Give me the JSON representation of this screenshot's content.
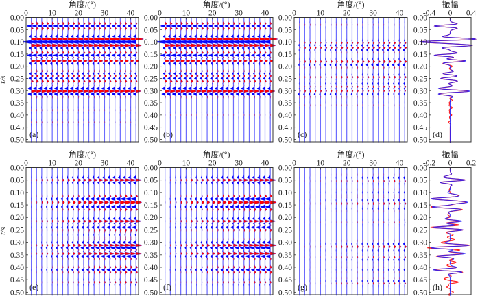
{
  "chart_data": [
    {
      "id": "a",
      "type": "seismic-gather",
      "panel_label": "(a)",
      "xlabel": "角度/(°)",
      "ylabel": "t/s",
      "xlim": [
        0,
        43
      ],
      "ylim": [
        0,
        0.51
      ],
      "xticks": [
        0,
        10,
        20,
        30,
        40
      ],
      "yticks": [
        "0.00",
        "0.05",
        "0.10",
        "0.15",
        "0.20",
        "0.25",
        "0.30",
        "0.35",
        "0.40",
        "0.45",
        "0.50"
      ],
      "angles": [
        2,
        4,
        6,
        8,
        10,
        12,
        14,
        16,
        18,
        20,
        22,
        24,
        26,
        28,
        30,
        32,
        34,
        36,
        38,
        40,
        42
      ],
      "events": [
        [
          0.035,
          -0.3,
          -0.18
        ],
        [
          0.088,
          0.3,
          0.38
        ],
        [
          0.1,
          -0.4,
          -0.34
        ],
        [
          0.115,
          0.34,
          0.3
        ],
        [
          0.155,
          -0.3,
          -0.2
        ],
        [
          0.178,
          0.3,
          0.2
        ],
        [
          0.23,
          -0.14,
          -0.08
        ],
        [
          0.25,
          -0.15,
          -0.1
        ],
        [
          0.262,
          0.08,
          0.05
        ],
        [
          0.29,
          -0.1,
          -0.06
        ],
        [
          0.302,
          0.3,
          0.28
        ],
        [
          0.315,
          -0.12,
          -0.08
        ],
        [
          0.38,
          0.03,
          0.02
        ],
        [
          0.43,
          0.03,
          0.02
        ]
      ]
    },
    {
      "id": "b",
      "type": "seismic-gather",
      "panel_label": "(b)",
      "xlabel": "角度/(°)",
      "xlim": [
        0,
        43
      ],
      "ylim": [
        0,
        0.51
      ],
      "xticks": [
        0,
        10,
        20,
        30,
        40
      ],
      "yticks": [
        "0.00",
        "0.05",
        "0.10",
        "0.15",
        "0.20",
        "0.25",
        "0.30",
        "0.35",
        "0.40",
        "0.45",
        "0.50"
      ],
      "angles": [
        2,
        4,
        6,
        8,
        10,
        12,
        14,
        16,
        18,
        20,
        22,
        24,
        26,
        28,
        30,
        32,
        34,
        36,
        38,
        40,
        42
      ],
      "events": [
        [
          0.035,
          -0.3,
          -0.18
        ],
        [
          0.088,
          0.3,
          0.36
        ],
        [
          0.1,
          -0.4,
          -0.34
        ],
        [
          0.115,
          0.34,
          0.28
        ],
        [
          0.155,
          -0.3,
          -0.2
        ],
        [
          0.178,
          0.3,
          0.18
        ],
        [
          0.23,
          -0.14,
          -0.08
        ],
        [
          0.25,
          -0.15,
          -0.1
        ],
        [
          0.262,
          0.08,
          0.05
        ],
        [
          0.29,
          -0.1,
          -0.06
        ],
        [
          0.302,
          0.3,
          0.26
        ],
        [
          0.315,
          -0.12,
          -0.08
        ],
        [
          0.4,
          0.02,
          0.02
        ]
      ]
    },
    {
      "id": "c",
      "type": "seismic-gather",
      "panel_label": "(c)",
      "xlabel": "角度/(°)",
      "xlim": [
        0,
        43
      ],
      "ylim": [
        0,
        0.51
      ],
      "xticks": [
        0,
        10,
        20,
        30,
        40
      ],
      "yticks": [
        "0.00",
        "0.05",
        "0.10",
        "0.15",
        "0.20",
        "0.25",
        "0.30",
        "0.35",
        "0.40",
        "0.45",
        "0.50"
      ],
      "angles": [
        2,
        4,
        6,
        8,
        10,
        12,
        14,
        16,
        18,
        20,
        22,
        24,
        26,
        28,
        30,
        32,
        34,
        36,
        38,
        40,
        42
      ],
      "events": [
        [
          0.03,
          0.03,
          0.02
        ],
        [
          0.105,
          0.02,
          0.1
        ],
        [
          0.112,
          -0.05,
          -0.02
        ],
        [
          0.125,
          0.04,
          0.1
        ],
        [
          0.132,
          -0.02,
          -0.1
        ],
        [
          0.18,
          0.05,
          0.12
        ],
        [
          0.195,
          -0.05,
          -0.12
        ],
        [
          0.245,
          0.03,
          0.12
        ],
        [
          0.27,
          -0.02,
          -0.06
        ],
        [
          0.285,
          0.02,
          0.08
        ],
        [
          0.3,
          0.06,
          0.08
        ],
        [
          0.315,
          -0.08,
          -0.03
        ],
        [
          0.36,
          0.02,
          0.02
        ]
      ]
    },
    {
      "id": "d",
      "type": "line",
      "panel_label": "(d)",
      "xlabel": "振幅",
      "xlim": [
        -0.4,
        0.4
      ],
      "ylim": [
        0,
        0.51
      ],
      "xticks": [
        "-0.4",
        "0",
        "0.4"
      ],
      "yticks": [
        "0.00",
        "0.05",
        "0.10",
        "0.15",
        "0.20",
        "0.25",
        "0.30",
        "0.35",
        "0.40",
        "0.45",
        "0.50"
      ],
      "series": [
        {
          "color": "#ff2020",
          "events": [
            [
              0.035,
              -0.3
            ],
            [
              0.088,
              0.33
            ],
            [
              0.1,
              -0.4
            ],
            [
              0.115,
              0.34
            ],
            [
              0.155,
              -0.3
            ],
            [
              0.178,
              0.28
            ],
            [
              0.2,
              0.04
            ],
            [
              0.23,
              -0.14
            ],
            [
              0.25,
              -0.15
            ],
            [
              0.262,
              0.08
            ],
            [
              0.29,
              -0.1
            ],
            [
              0.302,
              0.28
            ],
            [
              0.315,
              -0.12
            ],
            [
              0.34,
              0.04
            ],
            [
              0.37,
              0.04
            ],
            [
              0.4,
              0.03
            ],
            [
              0.43,
              -0.03
            ]
          ]
        },
        {
          "color": "#2020ff",
          "events": [
            [
              0.035,
              -0.3
            ],
            [
              0.088,
              0.33
            ],
            [
              0.1,
              -0.4
            ],
            [
              0.115,
              0.34
            ],
            [
              0.155,
              -0.3
            ],
            [
              0.178,
              0.3
            ],
            [
              0.23,
              -0.14
            ],
            [
              0.25,
              -0.15
            ],
            [
              0.262,
              0.08
            ],
            [
              0.29,
              -0.1
            ],
            [
              0.302,
              0.3
            ],
            [
              0.315,
              -0.12
            ]
          ]
        }
      ]
    },
    {
      "id": "e",
      "type": "seismic-gather",
      "panel_label": "(e)",
      "xlabel": "角度/(°)",
      "ylabel": "t/s",
      "xlim": [
        0,
        43
      ],
      "ylim": [
        0,
        0.51
      ],
      "xticks": [
        0,
        10,
        20,
        30,
        40
      ],
      "yticks": [
        "0.00",
        "0.05",
        "0.10",
        "0.15",
        "0.20",
        "0.25",
        "0.30",
        "0.35",
        "0.40",
        "0.45",
        "0.50"
      ],
      "angles": [
        2,
        4,
        6,
        8,
        10,
        12,
        14,
        16,
        18,
        20,
        22,
        24,
        26,
        28,
        30,
        32,
        34,
        36,
        38,
        40,
        42
      ],
      "events": [
        [
          0.05,
          0.0,
          0.38
        ],
        [
          0.125,
          0.0,
          -0.28
        ],
        [
          0.14,
          0.0,
          0.32
        ],
        [
          0.158,
          0.0,
          -0.28
        ],
        [
          0.215,
          0.0,
          0.34
        ],
        [
          0.24,
          0.0,
          -0.26
        ],
        [
          0.27,
          0.0,
          -0.06
        ],
        [
          0.3,
          0.0,
          -0.08
        ],
        [
          0.312,
          0.0,
          0.3
        ],
        [
          0.322,
          0.0,
          -0.18
        ],
        [
          0.332,
          0.0,
          0.1
        ],
        [
          0.345,
          0.0,
          0.34
        ],
        [
          0.356,
          0.0,
          -0.16
        ],
        [
          0.41,
          0.0,
          -0.26
        ],
        [
          0.46,
          0.0,
          0.1
        ]
      ]
    },
    {
      "id": "f",
      "type": "seismic-gather",
      "panel_label": "(f)",
      "xlabel": "角度/(°)",
      "xlim": [
        0,
        43
      ],
      "ylim": [
        0,
        0.51
      ],
      "xticks": [
        0,
        10,
        20,
        30,
        40
      ],
      "yticks": [
        "0.00",
        "0.05",
        "0.10",
        "0.15",
        "0.20",
        "0.25",
        "0.30",
        "0.35",
        "0.40",
        "0.45",
        "0.50"
      ],
      "angles": [
        2,
        4,
        6,
        8,
        10,
        12,
        14,
        16,
        18,
        20,
        22,
        24,
        26,
        28,
        30,
        32,
        34,
        36,
        38,
        40,
        42
      ],
      "events": [
        [
          0.05,
          0.0,
          0.38
        ],
        [
          0.125,
          0.0,
          -0.28
        ],
        [
          0.14,
          0.0,
          0.34
        ],
        [
          0.158,
          0.0,
          -0.3
        ],
        [
          0.215,
          0.0,
          0.34
        ],
        [
          0.24,
          0.0,
          -0.26
        ],
        [
          0.3,
          0.0,
          -0.08
        ],
        [
          0.312,
          0.0,
          0.3
        ],
        [
          0.322,
          0.0,
          -0.2
        ],
        [
          0.345,
          0.0,
          0.32
        ],
        [
          0.356,
          0.0,
          -0.16
        ],
        [
          0.41,
          0.0,
          -0.26
        ],
        [
          0.46,
          0.0,
          0.08
        ]
      ]
    },
    {
      "id": "g",
      "type": "seismic-gather",
      "panel_label": "(g)",
      "xlabel": "角度/(°)",
      "xlim": [
        0,
        43
      ],
      "ylim": [
        0,
        0.51
      ],
      "xticks": [
        0,
        10,
        20,
        30,
        40
      ],
      "yticks": [
        "0.00",
        "0.05",
        "0.10",
        "0.15",
        "0.20",
        "0.25",
        "0.30",
        "0.35",
        "0.40",
        "0.45",
        "0.50"
      ],
      "angles": [
        2,
        4,
        6,
        8,
        10,
        12,
        14,
        16,
        18,
        20,
        22,
        24,
        26,
        28,
        30,
        32,
        34,
        36,
        38,
        40,
        42
      ],
      "events": [
        [
          0.04,
          0.0,
          -0.06
        ],
        [
          0.055,
          0.0,
          0.06
        ],
        [
          0.1,
          0.0,
          -0.05
        ],
        [
          0.13,
          0.0,
          -0.06
        ],
        [
          0.145,
          0.0,
          0.08
        ],
        [
          0.165,
          0.0,
          -0.05
        ],
        [
          0.22,
          0.0,
          0.04
        ],
        [
          0.305,
          0.0,
          -0.06
        ],
        [
          0.318,
          0.0,
          0.1
        ],
        [
          0.335,
          0.0,
          -0.05
        ],
        [
          0.36,
          0.0,
          0.05
        ],
        [
          0.37,
          0.0,
          -0.05
        ],
        [
          0.41,
          0.0,
          -0.06
        ],
        [
          0.455,
          0.0,
          -0.06
        ],
        [
          0.465,
          0.0,
          0.05
        ]
      ]
    },
    {
      "id": "h",
      "type": "line",
      "panel_label": "(h)",
      "xlabel": "振幅",
      "xlim": [
        -0.2,
        0.2
      ],
      "ylim": [
        0,
        0.51
      ],
      "xticks": [
        "-0.2",
        "0",
        "0.2"
      ],
      "yticks": [
        "0.00",
        "0.05",
        "0.10",
        "0.15",
        "0.20",
        "0.25",
        "0.30",
        "0.35",
        "0.40",
        "0.45",
        "0.50"
      ],
      "series": [
        {
          "color": "#ff2020",
          "events": [
            [
              0.035,
              -0.03
            ],
            [
              0.05,
              0.12
            ],
            [
              0.06,
              -0.04
            ],
            [
              0.1,
              0.02
            ],
            [
              0.11,
              0.05
            ],
            [
              0.125,
              -0.15
            ],
            [
              0.14,
              0.12
            ],
            [
              0.158,
              -0.16
            ],
            [
              0.17,
              0.05
            ],
            [
              0.19,
              -0.02
            ],
            [
              0.215,
              0.1
            ],
            [
              0.23,
              0.04
            ],
            [
              0.24,
              -0.14
            ],
            [
              0.25,
              0.06
            ],
            [
              0.27,
              0.03
            ],
            [
              0.29,
              0.03
            ],
            [
              0.3,
              -0.03
            ],
            [
              0.312,
              0.11
            ],
            [
              0.322,
              -0.14
            ],
            [
              0.332,
              0.06
            ],
            [
              0.345,
              0.1
            ],
            [
              0.356,
              -0.09
            ],
            [
              0.38,
              0.05
            ],
            [
              0.395,
              -0.03
            ],
            [
              0.41,
              -0.13
            ],
            [
              0.42,
              0.06
            ],
            [
              0.445,
              -0.04
            ],
            [
              0.46,
              0.07
            ],
            [
              0.48,
              -0.03
            ],
            [
              0.5,
              0.03
            ]
          ]
        },
        {
          "color": "#2020ff",
          "events": [
            [
              0.035,
              -0.03
            ],
            [
              0.05,
              0.12
            ],
            [
              0.06,
              -0.04
            ],
            [
              0.11,
              0.05
            ],
            [
              0.125,
              -0.15
            ],
            [
              0.14,
              0.13
            ],
            [
              0.158,
              -0.15
            ],
            [
              0.17,
              0.04
            ],
            [
              0.215,
              0.11
            ],
            [
              0.24,
              -0.14
            ],
            [
              0.25,
              0.06
            ],
            [
              0.312,
              0.12
            ],
            [
              0.322,
              -0.13
            ],
            [
              0.345,
              0.11
            ],
            [
              0.356,
              -0.08
            ],
            [
              0.41,
              -0.14
            ],
            [
              0.42,
              0.05
            ]
          ]
        }
      ]
    }
  ],
  "colors": {
    "positive_fill": "#ff0000",
    "negative_fill": "#0000ff",
    "trace_line": "#8c8cff",
    "wiggle": "#2a2aff"
  }
}
